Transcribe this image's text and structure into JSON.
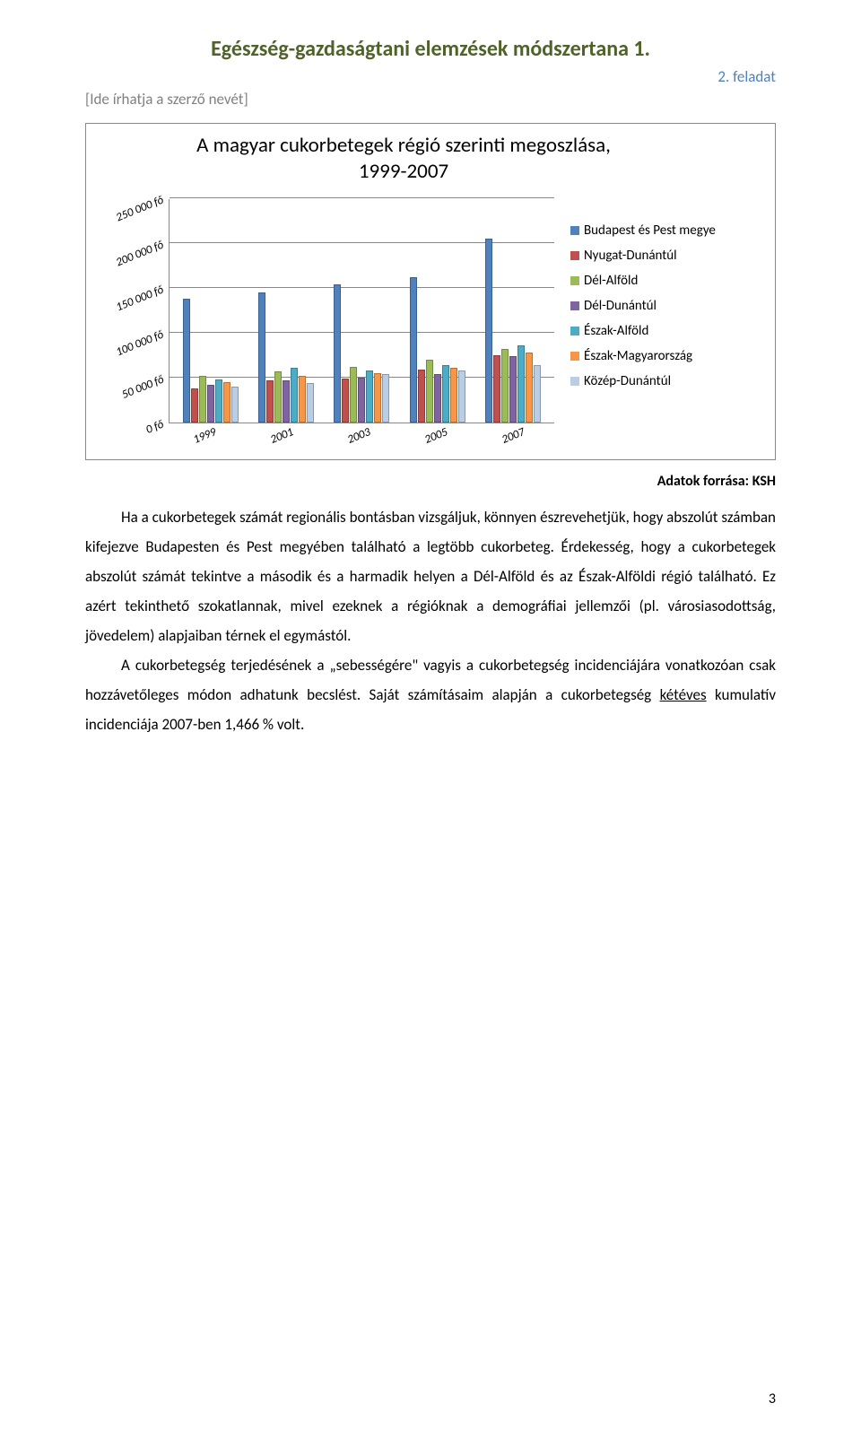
{
  "header": {
    "title": "Egészség-gazdaságtani elemzések módszertana 1.",
    "title_color": "#4f6228",
    "subtitle": "2. feladat",
    "subtitle_color": "#4f81bd",
    "author_placeholder": "[Ide írhatja a szerző nevét]"
  },
  "chart": {
    "type": "bar",
    "title": "A magyar cukorbetegek régió szerinti megoszlása, 1999-2007",
    "ylim": [
      0,
      250000
    ],
    "ytick_step": 50000,
    "y_labels": [
      "0 fő",
      "50 000 fő",
      "100 000 fő",
      "150 000 fő",
      "200 000 fő",
      "250 000 fő"
    ],
    "x_labels": [
      "1999",
      "2001",
      "2003",
      "2005",
      "2007"
    ],
    "series": [
      {
        "name": "Budapest és Pest megye",
        "color": "#4f81bd"
      },
      {
        "name": "Nyugat-Dunántúl",
        "color": "#c0504d"
      },
      {
        "name": "Dél-Alföld",
        "color": "#9bbb59"
      },
      {
        "name": "Dél-Dunántúl",
        "color": "#8064a2"
      },
      {
        "name": "Észak-Alföld",
        "color": "#4bacc6"
      },
      {
        "name": "Észak-Magyarország",
        "color": "#f79646"
      },
      {
        "name": "Közép-Dunántúl",
        "color": "#b9cde5"
      }
    ],
    "data": {
      "1999": [
        138000,
        38000,
        52000,
        42000,
        48000,
        45000,
        40000
      ],
      "2001": [
        145000,
        47000,
        57000,
        47000,
        61000,
        52000,
        44000
      ],
      "2003": [
        154000,
        49000,
        62000,
        50000,
        58000,
        55000,
        54000
      ],
      "2005": [
        162000,
        59000,
        70000,
        54000,
        64000,
        61000,
        58000
      ],
      "2007": [
        205000,
        75000,
        82000,
        74000,
        86000,
        78000,
        64000
      ]
    },
    "grid_color": "#888888",
    "background_color": "#ffffff"
  },
  "source": "Adatok forrása: KSH",
  "body": {
    "p1": "Ha a cukorbetegek számát regionális bontásban vizsgáljuk, könnyen észrevehetjük, hogy abszolút számban kifejezve Budapesten és Pest megyében található a legtöbb cukorbeteg. Érdekesség, hogy a cukorbetegek abszolút számát tekintve a második és a harmadik helyen a Dél-Alföld és az Észak-Alföldi régió található. Ez azért tekinthető szokatlannak, mivel ezeknek a régióknak a demográfiai jellemzői (pl. városiasodottság, jövedelem) alapjaiban térnek el egymástól.",
    "p2_pre": "A cukorbetegség terjedésének a „sebességére\" vagyis a cukorbetegség incidenciájára vonatkozóan csak hozzávetőleges módon adhatunk becslést. Saját számításaim alapján a cukorbetegség ",
    "p2_u": "kétéves",
    "p2_post": " kumulatív incidenciája 2007-ben 1,466 % volt."
  },
  "page_number": "3"
}
